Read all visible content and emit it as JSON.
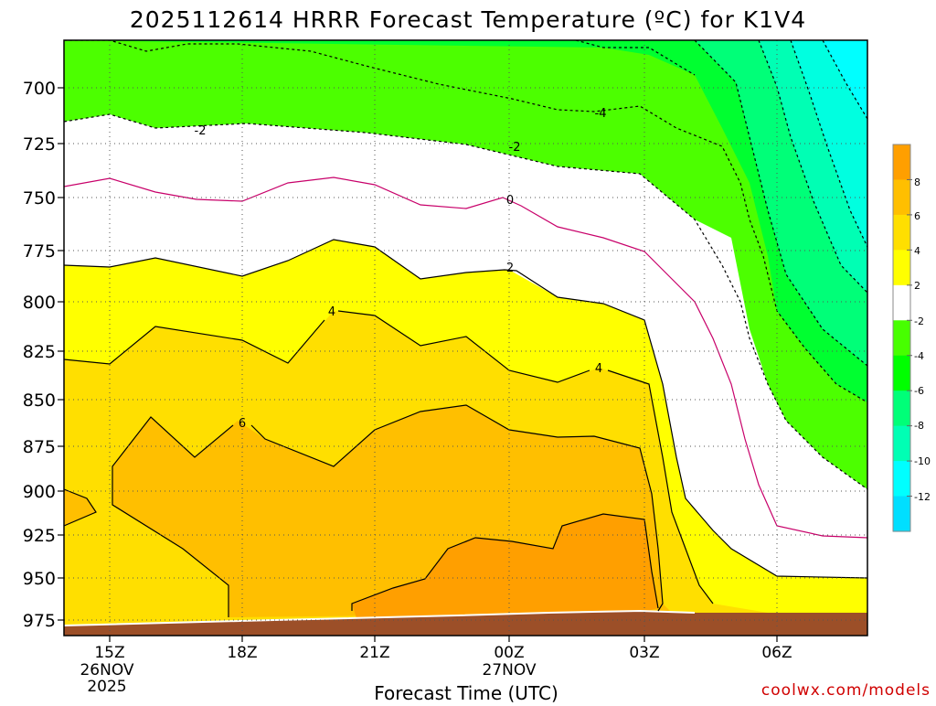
{
  "chart_data": {
    "type": "heatmap",
    "title": "2025112614 HRRR Forecast Temperature (ºC) for K1V4",
    "xlabel": "Forecast Time (UTC)",
    "credit": "coolwx.com/models",
    "y_axis": {
      "ticks": [
        700,
        725,
        750,
        775,
        800,
        825,
        850,
        875,
        900,
        925,
        950,
        975
      ]
    },
    "x_axis": {
      "ticks": [
        {
          "line1": "15Z",
          "line2": "26NOV",
          "line3": "2025"
        },
        {
          "line1": "18Z",
          "line2": "",
          "line3": ""
        },
        {
          "line1": "21Z",
          "line2": "",
          "line3": ""
        },
        {
          "line1": "00Z",
          "line2": "27NOV",
          "line3": ""
        },
        {
          "line1": "03Z",
          "line2": "",
          "line3": ""
        },
        {
          "line1": "06Z",
          "line2": "",
          "line3": ""
        }
      ]
    },
    "colorbar": {
      "ticks": [
        "8",
        "6",
        "4",
        "2",
        "-2",
        "-4",
        "-6",
        "-8",
        "-10",
        "-12"
      ],
      "colors": [
        "#ff9f00",
        "#ffbf00",
        "#ffdf00",
        "#ffff00",
        "#ffffff",
        "#47ff00",
        "#00ff00",
        "#00ff78",
        "#00ffb4",
        "#00ffff",
        "#00dfff"
      ]
    },
    "contour_labels": [
      "-4",
      "-2",
      "-2",
      "0",
      "2",
      "4",
      "4",
      "6"
    ],
    "grid": true
  }
}
